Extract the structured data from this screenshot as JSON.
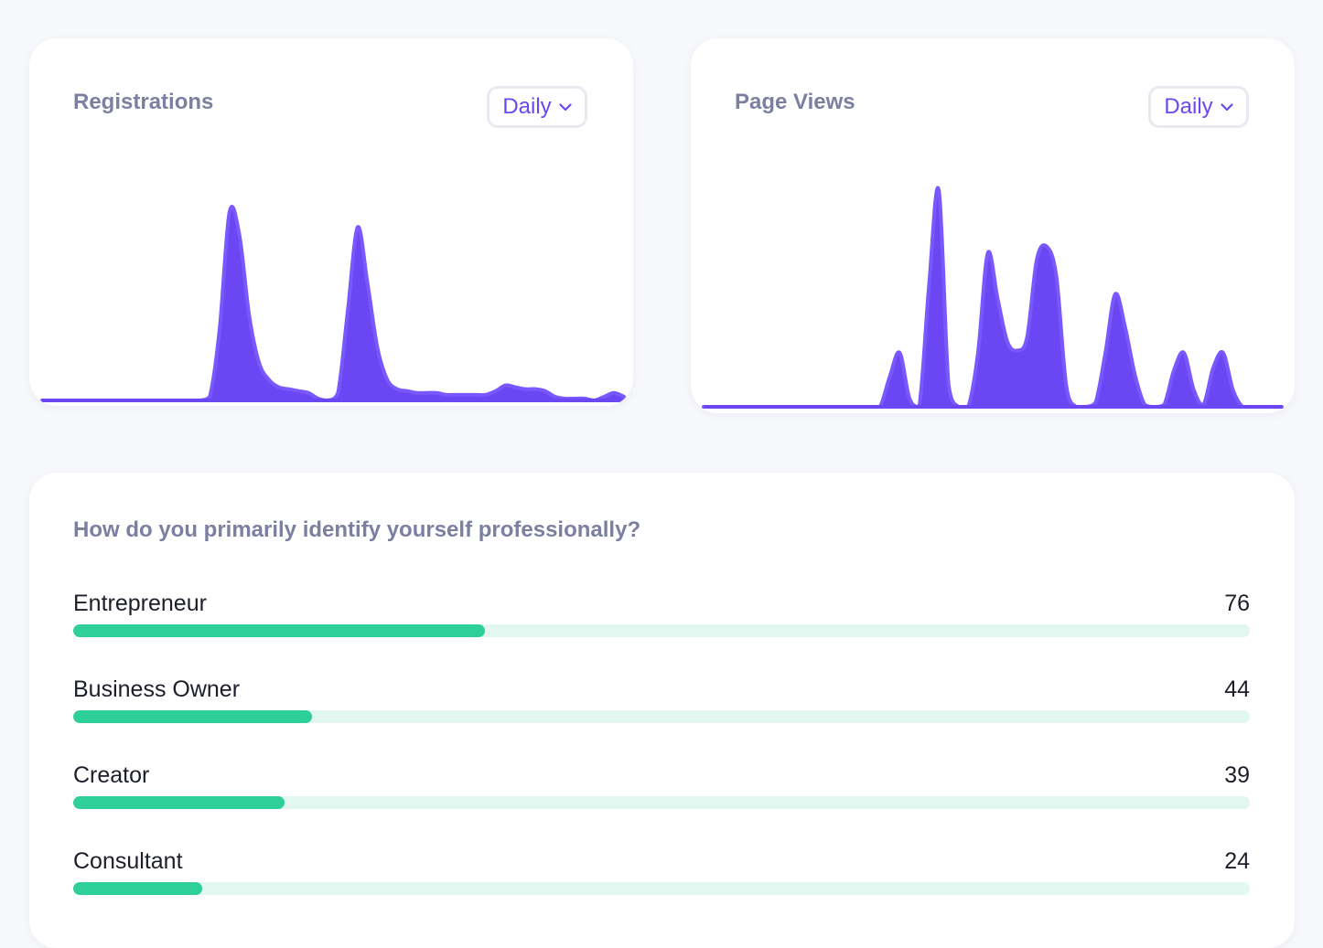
{
  "registrations": {
    "title": "Registrations",
    "dropdown_value": "Daily"
  },
  "page_views": {
    "title": "Page Views",
    "dropdown_value": "Daily"
  },
  "question": {
    "title": "How do you primarily identify yourself professionally?",
    "answers": [
      {
        "label": "Entrepreneur",
        "value": "76",
        "fill_fraction": 0.35
      },
      {
        "label": "Business Owner",
        "value": "44",
        "fill_fraction": 0.203
      },
      {
        "label": "Creator",
        "value": "39",
        "fill_fraction": 0.18
      },
      {
        "label": "Consultant",
        "value": "24",
        "fill_fraction": 0.11
      }
    ]
  },
  "colors": {
    "chart_fill": "#6b47f3",
    "bar_fill": "#2fcf9a",
    "bar_track": "#e1f7ef",
    "accent": "#6b47f3"
  },
  "chart_data": [
    {
      "type": "area",
      "series": [
        {
          "values": [
            0,
            0,
            0,
            0,
            0,
            0,
            0,
            0,
            0,
            0,
            0,
            0,
            0,
            0,
            0,
            0,
            0,
            2,
            38,
            100,
            88,
            45,
            20,
            11,
            7,
            6,
            5,
            4,
            1,
            0,
            4,
            48,
            92,
            62,
            28,
            11,
            6,
            5,
            4,
            4,
            4,
            3,
            3,
            3,
            3,
            3,
            5,
            8,
            7,
            6,
            6,
            5,
            2,
            1,
            1,
            1,
            0,
            2,
            4,
            2
          ]
        }
      ],
      "grid": false,
      "legend": "none"
    },
    {
      "type": "area",
      "series": [
        {
          "values": [
            0,
            0,
            0,
            0,
            0,
            0,
            0,
            0,
            0,
            0,
            0,
            0,
            0,
            0,
            0,
            0,
            0,
            0,
            0,
            14,
            25,
            4,
            0,
            56,
            100,
            10,
            0,
            0,
            25,
            71,
            50,
            30,
            26,
            32,
            68,
            74,
            60,
            10,
            0,
            0,
            2,
            25,
            52,
            37,
            15,
            1,
            0,
            1,
            17,
            25,
            8,
            1,
            18,
            25,
            8,
            0,
            0,
            0,
            0,
            0
          ]
        }
      ],
      "grid": false,
      "legend": "none"
    }
  ]
}
